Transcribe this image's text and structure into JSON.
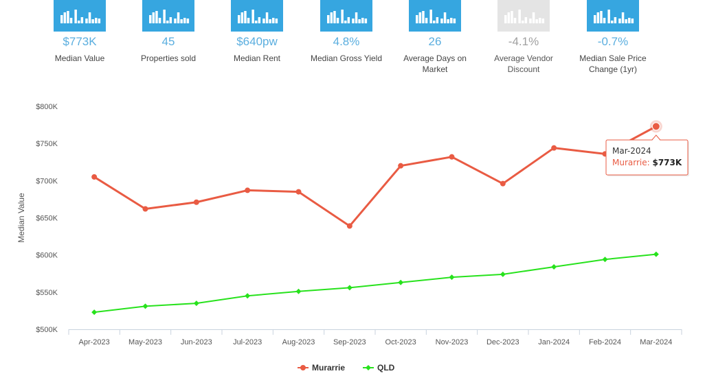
{
  "colors": {
    "accent": "#5aaedf",
    "icon_bg": "#36a6e0",
    "icon_disabled": "#e4e4e4",
    "murarrie": "#e95b43",
    "qld": "#27e21c"
  },
  "stats": [
    {
      "icon": "bar-chart-icon",
      "value": "$773K",
      "label": "Median Value",
      "disabled": false
    },
    {
      "icon": "bar-chart-icon",
      "value": "45",
      "label": "Properties sold",
      "disabled": false
    },
    {
      "icon": "bar-chart-icon",
      "value": "$640pw",
      "label": "Median Rent",
      "disabled": false
    },
    {
      "icon": "bar-chart-icon",
      "value": "4.8%",
      "label": "Median Gross Yield",
      "disabled": false
    },
    {
      "icon": "bar-chart-icon",
      "value": "26",
      "label": "Average Days on Market",
      "disabled": false
    },
    {
      "icon": "bar-chart-icon",
      "value": "-4.1%",
      "label": "Average Vendor Discount",
      "disabled": true
    },
    {
      "icon": "bar-chart-icon",
      "value": "-0.7%",
      "label": "Median Sale Price Change (1yr)",
      "disabled": false
    }
  ],
  "chart_data": {
    "type": "line",
    "categories": [
      "Apr-2023",
      "May-2023",
      "Jun-2023",
      "Jul-2023",
      "Aug-2023",
      "Sep-2023",
      "Oct-2023",
      "Nov-2023",
      "Dec-2023",
      "Jan-2024",
      "Feb-2024",
      "Mar-2024"
    ],
    "series": [
      {
        "name": "Murarrie",
        "color": "#e95b43",
        "marker": "circle",
        "values": [
          705000,
          662000,
          671000,
          687000,
          685000,
          639000,
          720000,
          732000,
          696000,
          744000,
          736000,
          773000
        ]
      },
      {
        "name": "QLD",
        "color": "#27e21c",
        "marker": "diamond",
        "values": [
          523000,
          531000,
          535000,
          545000,
          551000,
          556000,
          563000,
          570000,
          574000,
          584000,
          594000,
          601000
        ]
      }
    ],
    "ylabel": "Median Value",
    "xlabel": "",
    "ylim": [
      500000,
      800000
    ],
    "yticks": [
      500000,
      550000,
      600000,
      650000,
      700000,
      750000,
      800000
    ],
    "ytick_labels": [
      "$500K",
      "$550K",
      "$600K",
      "$650K",
      "$700K",
      "$750K",
      "$800K"
    ],
    "grid": false,
    "legend": "bottom-center",
    "tooltip": {
      "category": "Mar-2024",
      "series": "Murarrie",
      "value": "$773K"
    }
  }
}
